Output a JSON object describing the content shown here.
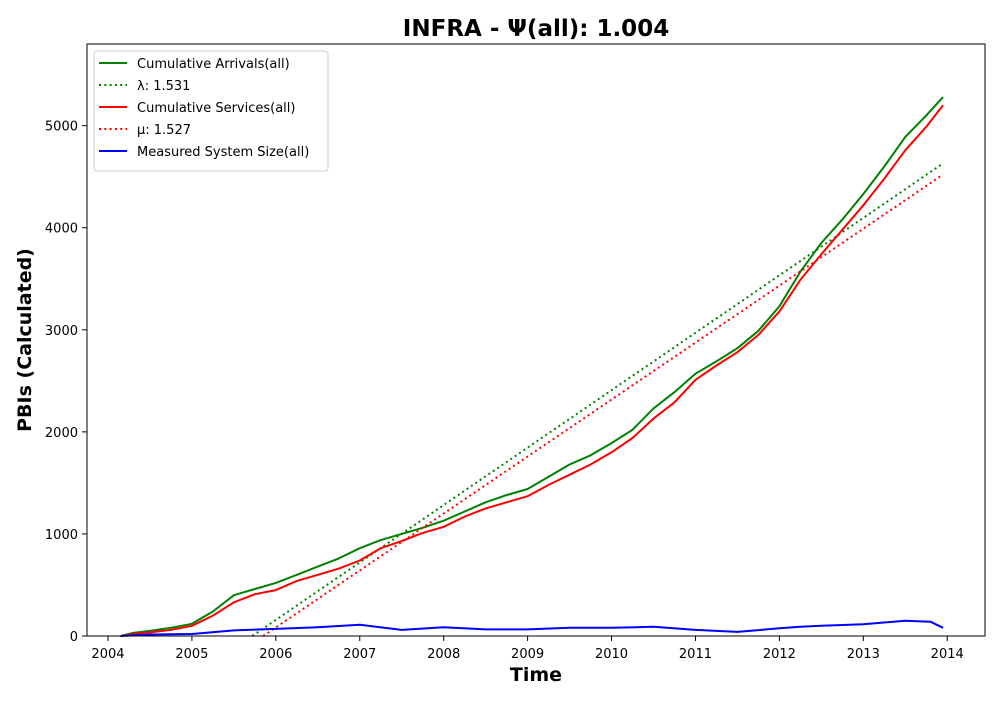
{
  "chart_data": {
    "type": "line",
    "title": "INFRA -  Ψ(all): 1.004",
    "xlabel": "Time",
    "ylabel": "PBIs (Calculated)",
    "xlim": [
      2003.75,
      2014.45
    ],
    "ylim": [
      0,
      5800
    ],
    "x_ticks": [
      2004,
      2005,
      2006,
      2007,
      2008,
      2009,
      2010,
      2011,
      2012,
      2013,
      2014
    ],
    "y_ticks": [
      0,
      1000,
      2000,
      3000,
      4000,
      5000
    ],
    "grid": false,
    "legend_position": "top-left",
    "series": [
      {
        "name": "Cumulative Arrivals(all)",
        "color": "#008000",
        "style": "solid",
        "x": [
          2004.15,
          2004.3,
          2004.5,
          2004.75,
          2005.0,
          2005.25,
          2005.5,
          2005.75,
          2006.0,
          2006.25,
          2006.5,
          2006.75,
          2007.0,
          2007.25,
          2007.5,
          2007.75,
          2008.0,
          2008.25,
          2008.5,
          2008.75,
          2009.0,
          2009.25,
          2009.5,
          2009.75,
          2010.0,
          2010.25,
          2010.5,
          2010.75,
          2011.0,
          2011.25,
          2011.5,
          2011.75,
          2012.0,
          2012.25,
          2012.5,
          2012.75,
          2013.0,
          2013.25,
          2013.5,
          2013.75,
          2013.95
        ],
        "y": [
          0,
          30,
          50,
          80,
          120,
          240,
          400,
          460,
          520,
          600,
          680,
          760,
          860,
          940,
          1000,
          1060,
          1130,
          1220,
          1310,
          1380,
          1440,
          1560,
          1680,
          1770,
          1890,
          2020,
          2230,
          2390,
          2570,
          2690,
          2820,
          2990,
          3230,
          3570,
          3850,
          4080,
          4330,
          4600,
          4890,
          5100,
          5280
        ]
      },
      {
        "name": "λ: 1.531",
        "color": "#008000",
        "style": "dotted",
        "x": [
          2005.72,
          2013.95
        ],
        "y": [
          0,
          4630
        ]
      },
      {
        "name": "Cumulative Services(all)",
        "color": "#ff0000",
        "style": "solid",
        "x": [
          2004.15,
          2004.3,
          2004.5,
          2004.75,
          2005.0,
          2005.25,
          2005.5,
          2005.75,
          2006.0,
          2006.25,
          2006.5,
          2006.75,
          2007.0,
          2007.25,
          2007.5,
          2007.75,
          2008.0,
          2008.25,
          2008.5,
          2008.75,
          2009.0,
          2009.25,
          2009.5,
          2009.75,
          2010.0,
          2010.25,
          2010.5,
          2010.75,
          2011.0,
          2011.25,
          2011.5,
          2011.75,
          2012.0,
          2012.25,
          2012.5,
          2012.75,
          2013.0,
          2013.25,
          2013.5,
          2013.75,
          2013.95
        ],
        "y": [
          0,
          20,
          35,
          60,
          100,
          200,
          330,
          410,
          450,
          540,
          600,
          660,
          740,
          860,
          930,
          1010,
          1070,
          1170,
          1250,
          1310,
          1370,
          1480,
          1580,
          1680,
          1800,
          1940,
          2130,
          2290,
          2510,
          2650,
          2780,
          2950,
          3180,
          3490,
          3740,
          3980,
          4220,
          4480,
          4760,
          4990,
          5200
        ]
      },
      {
        "name": "μ: 1.527",
        "color": "#ff0000",
        "style": "dotted",
        "x": [
          2005.85,
          2013.95
        ],
        "y": [
          0,
          4520
        ]
      },
      {
        "name": "Measured System Size(all)",
        "color": "#0000ff",
        "style": "solid",
        "x": [
          2004.15,
          2004.5,
          2005.0,
          2005.5,
          2006.0,
          2006.5,
          2007.0,
          2007.5,
          2008.0,
          2008.5,
          2009.0,
          2009.5,
          2010.0,
          2010.5,
          2011.0,
          2011.5,
          2012.0,
          2012.25,
          2012.5,
          2013.0,
          2013.5,
          2013.8,
          2013.95
        ],
        "y": [
          0,
          15,
          20,
          55,
          70,
          85,
          110,
          60,
          85,
          65,
          65,
          80,
          80,
          90,
          60,
          40,
          75,
          90,
          100,
          115,
          150,
          140,
          80
        ]
      }
    ]
  }
}
